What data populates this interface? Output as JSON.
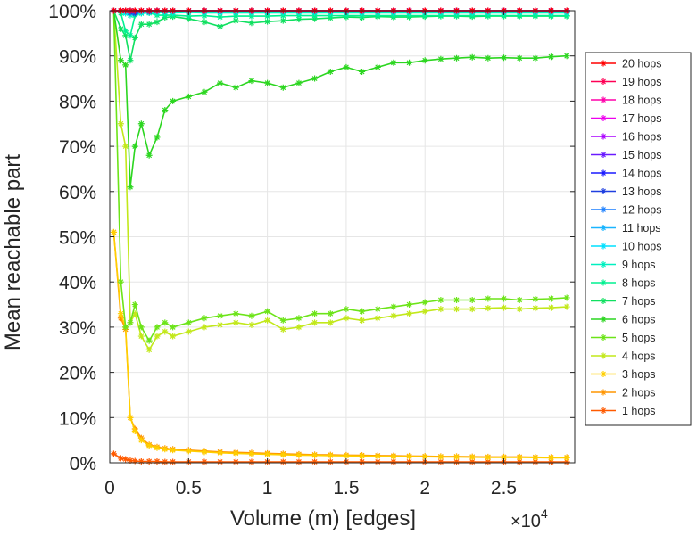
{
  "chart_data": {
    "type": "line",
    "xlabel": "Volume (m) [edges]",
    "ylabel": "Mean reachable part",
    "x_exponent_label": "×10",
    "x_exponent_power": "4",
    "xlim": [
      0,
      29500
    ],
    "ylim": [
      0,
      100
    ],
    "x_ticks": [
      0,
      5000,
      10000,
      15000,
      20000,
      25000
    ],
    "x_tick_labels": [
      "0",
      "0.5",
      "1",
      "1.5",
      "2",
      "2.5"
    ],
    "y_ticks": [
      0,
      10,
      20,
      30,
      40,
      50,
      60,
      70,
      80,
      90,
      100
    ],
    "y_tick_labels": [
      "0%",
      "10%",
      "20%",
      "30%",
      "40%",
      "50%",
      "60%",
      "70%",
      "80%",
      "90%",
      "100%"
    ],
    "grid": true,
    "legend_position": "right",
    "x": [
      250,
      700,
      1000,
      1300,
      1600,
      2000,
      2500,
      3000,
      3500,
      4000,
      5000,
      6000,
      7000,
      8000,
      9000,
      10000,
      11000,
      12000,
      13000,
      14000,
      15000,
      16000,
      17000,
      18000,
      19000,
      20000,
      21000,
      22000,
      23000,
      24000,
      25000,
      26000,
      27000,
      28000,
      29000
    ],
    "series": [
      {
        "name": "20 hops",
        "color": "#ff0000",
        "values": [
          100,
          100,
          100,
          100,
          100,
          100,
          100,
          100,
          100,
          100,
          100,
          100,
          100,
          100,
          100,
          100,
          100,
          100,
          100,
          100,
          100,
          100,
          100,
          100,
          100,
          100,
          100,
          100,
          100,
          100,
          100,
          100,
          100,
          100,
          100
        ]
      },
      {
        "name": "19 hops",
        "color": "#ff0055",
        "values": [
          100,
          100,
          100,
          100,
          100,
          100,
          100,
          100,
          100,
          100,
          100,
          100,
          100,
          100,
          100,
          100,
          100,
          100,
          100,
          100,
          100,
          100,
          100,
          100,
          100,
          100,
          100,
          100,
          100,
          100,
          100,
          100,
          100,
          100,
          100
        ]
      },
      {
        "name": "18 hops",
        "color": "#ff00aa",
        "values": [
          100,
          100,
          100,
          100,
          100,
          100,
          100,
          100,
          100,
          100,
          100,
          100,
          100,
          100,
          100,
          100,
          100,
          100,
          100,
          100,
          100,
          100,
          100,
          100,
          100,
          100,
          100,
          100,
          100,
          100,
          100,
          100,
          100,
          100,
          100
        ]
      },
      {
        "name": "17 hops",
        "color": "#ee00ee",
        "values": [
          100,
          100,
          100,
          100,
          100,
          100,
          100,
          100,
          100,
          100,
          100,
          100,
          100,
          100,
          100,
          100,
          100,
          100,
          100,
          100,
          100,
          100,
          100,
          100,
          100,
          100,
          100,
          100,
          100,
          100,
          100,
          100,
          100,
          100,
          100
        ]
      },
      {
        "name": "16 hops",
        "color": "#aa00ff",
        "values": [
          100,
          100,
          100,
          100,
          100,
          100,
          100,
          100,
          100,
          100,
          100,
          100,
          100,
          100,
          100,
          100,
          100,
          100,
          100,
          100,
          100,
          100,
          100,
          100,
          100,
          100,
          100,
          100,
          100,
          100,
          100,
          100,
          100,
          100,
          100
        ]
      },
      {
        "name": "15 hops",
        "color": "#6a1bff",
        "values": [
          100,
          100,
          100,
          100,
          100,
          100,
          100,
          100,
          100,
          100,
          100,
          100,
          100,
          100,
          100,
          100,
          100,
          100,
          100,
          100,
          100,
          100,
          100,
          100,
          100,
          100,
          100,
          100,
          100,
          100,
          100,
          100,
          100,
          100,
          100
        ]
      },
      {
        "name": "14 hops",
        "color": "#1a1aff",
        "values": [
          100,
          100,
          100,
          100,
          100,
          100,
          100,
          100,
          100,
          100,
          100,
          100,
          100,
          100,
          100,
          100,
          100,
          100,
          100,
          100,
          100,
          100,
          100,
          100,
          100,
          100,
          100,
          100,
          100,
          100,
          100,
          100,
          100,
          100,
          100
        ]
      },
      {
        "name": "13 hops",
        "color": "#1f3fe0",
        "values": [
          100,
          100,
          100,
          99.6,
          99.4,
          100,
          99.8,
          100,
          100,
          100,
          100,
          100,
          100,
          100,
          100,
          100,
          100,
          100,
          100,
          100,
          100,
          100,
          100,
          100,
          100,
          100,
          100,
          100,
          100,
          100,
          100,
          100,
          100,
          100,
          100
        ]
      },
      {
        "name": "12 hops",
        "color": "#1a7fff",
        "values": [
          100,
          100,
          100,
          100,
          99.8,
          100,
          100,
          100,
          100,
          100,
          100,
          100,
          100,
          100,
          100,
          100,
          100,
          100,
          100,
          100,
          100,
          100,
          100,
          100,
          100,
          100,
          100,
          100,
          100,
          100,
          100,
          100,
          100,
          100,
          100
        ]
      },
      {
        "name": "11 hops",
        "color": "#1ab5ff",
        "values": [
          100,
          100,
          100,
          100,
          100,
          100,
          100,
          100,
          100,
          100,
          100,
          100,
          100,
          100,
          100,
          100,
          100,
          100,
          100,
          100,
          100,
          100,
          100,
          100,
          100,
          100,
          100,
          100,
          100,
          100,
          100,
          100,
          100,
          100,
          100
        ]
      },
      {
        "name": "10 hops",
        "color": "#00e0ff",
        "values": [
          100,
          100,
          99.6,
          99.5,
          99.6,
          99.7,
          99.8,
          99.8,
          99.8,
          99.8,
          99.8,
          99.8,
          99.7,
          99.8,
          99.8,
          99.8,
          99.8,
          99.8,
          99.8,
          99.8,
          99.8,
          99.8,
          99.8,
          99.8,
          99.8,
          99.8,
          99.8,
          99.8,
          99.8,
          99.8,
          99.8,
          99.8,
          99.8,
          99.8,
          99.8
        ]
      },
      {
        "name": "9 hops",
        "color": "#00f0c0",
        "values": [
          100,
          100,
          99.4,
          99.0,
          99.2,
          99.4,
          99.5,
          99.5,
          99.6,
          99.5,
          99.6,
          99.5,
          99.5,
          99.5,
          99.5,
          99.5,
          99.5,
          99.5,
          99.5,
          99.5,
          99.5,
          99.5,
          99.5,
          99.5,
          99.5,
          99.5,
          99.5,
          99.5,
          99.5,
          99.5,
          99.5,
          99.5,
          99.5,
          99.5,
          99.5
        ]
      },
      {
        "name": "8 hops",
        "color": "#00f090",
        "values": [
          100,
          99.5,
          95.5,
          94.5,
          99.0,
          99.5,
          99.5,
          99.0,
          99.0,
          99.0,
          98.8,
          98.9,
          98.6,
          98.8,
          98.8,
          98.8,
          98.9,
          98.9,
          98.9,
          98.9,
          98.9,
          98.9,
          98.9,
          98.9,
          98.9,
          98.9,
          98.9,
          98.9,
          98.9,
          98.9,
          98.9,
          98.9,
          98.9,
          98.9,
          98.9
        ]
      },
      {
        "name": "7 hops",
        "color": "#10e060",
        "values": [
          100,
          96,
          94.5,
          89,
          94,
          97,
          97,
          97.5,
          98.5,
          98.7,
          98.2,
          97.5,
          96.5,
          97.8,
          97.3,
          97.6,
          97.8,
          98.1,
          98.2,
          98.4,
          98.6,
          98.5,
          98.7,
          98.6,
          98.6,
          98.7,
          98.8,
          98.8,
          98.7,
          98.8,
          98.8,
          98.8,
          98.8,
          98.8,
          98.8
        ]
      },
      {
        "name": "6 hops",
        "color": "#2cd620",
        "values": [
          100,
          89,
          88,
          61,
          70,
          75,
          68,
          72,
          78,
          80,
          81,
          82,
          84,
          83,
          84.5,
          84,
          83,
          84,
          85,
          86.5,
          87.5,
          86.5,
          87.5,
          88.5,
          88.5,
          89,
          89.3,
          89.5,
          89.7,
          89.5,
          89.6,
          89.5,
          89.5,
          89.8,
          90
        ]
      },
      {
        "name": "5 hops",
        "color": "#6ce418",
        "values": [
          100,
          40,
          30,
          31,
          35,
          30,
          27,
          30,
          31,
          30,
          31,
          32,
          32.5,
          33,
          32.5,
          33.5,
          31.5,
          32,
          33,
          33,
          34,
          33.5,
          34,
          34.5,
          35,
          35.5,
          36,
          36,
          36,
          36.3,
          36.3,
          36,
          36.2,
          36.3,
          36.5
        ]
      },
      {
        "name": "4 hops",
        "color": "#c2e81a",
        "values": [
          100,
          75,
          70,
          31,
          33,
          28,
          25,
          28,
          29,
          28,
          29,
          30,
          30.5,
          31,
          30.5,
          31.5,
          29.5,
          30,
          31,
          31,
          32,
          31.5,
          32,
          32.5,
          33,
          33.5,
          34,
          34,
          34,
          34.2,
          34.3,
          34,
          34.2,
          34.3,
          34.5
        ]
      },
      {
        "name": "3 hops",
        "color": "#ffcf00",
        "values": [
          51,
          33,
          30,
          10,
          7,
          5,
          3.8,
          3.3,
          3,
          2.8,
          2.6,
          2.4,
          2.2,
          2.1,
          2.0,
          1.9,
          1.8,
          1.7,
          1.65,
          1.6,
          1.55,
          1.5,
          1.45,
          1.4,
          1.4,
          1.35,
          1.3,
          1.3,
          1.25,
          1.2,
          1.2,
          1.2,
          1.15,
          1.1,
          1.1
        ]
      },
      {
        "name": "2 hops",
        "color": "#ff9500",
        "values": [
          51,
          32,
          29.5,
          10,
          7.5,
          5.5,
          4,
          3.5,
          3.2,
          3,
          2.8,
          2.6,
          2.4,
          2.3,
          2.2,
          2.1,
          2.0,
          1.9,
          1.8,
          1.75,
          1.7,
          1.65,
          1.6,
          1.55,
          1.5,
          1.45,
          1.4,
          1.4,
          1.35,
          1.3,
          1.3,
          1.3,
          1.25,
          1.2,
          1.2
        ]
      },
      {
        "name": "1 hops",
        "color": "#ff5a00",
        "values": [
          2,
          1,
          0.8,
          0.5,
          0.4,
          0.3,
          0.3,
          0.3,
          0.2,
          0.2,
          0.2,
          0.2,
          0.2,
          0.2,
          0.2,
          0.2,
          0.2,
          0.2,
          0.2,
          0.2,
          0.2,
          0.2,
          0.2,
          0.2,
          0.2,
          0.2,
          0.2,
          0.2,
          0.2,
          0.2,
          0.2,
          0.2,
          0.2,
          0.2,
          0.2
        ]
      }
    ]
  }
}
